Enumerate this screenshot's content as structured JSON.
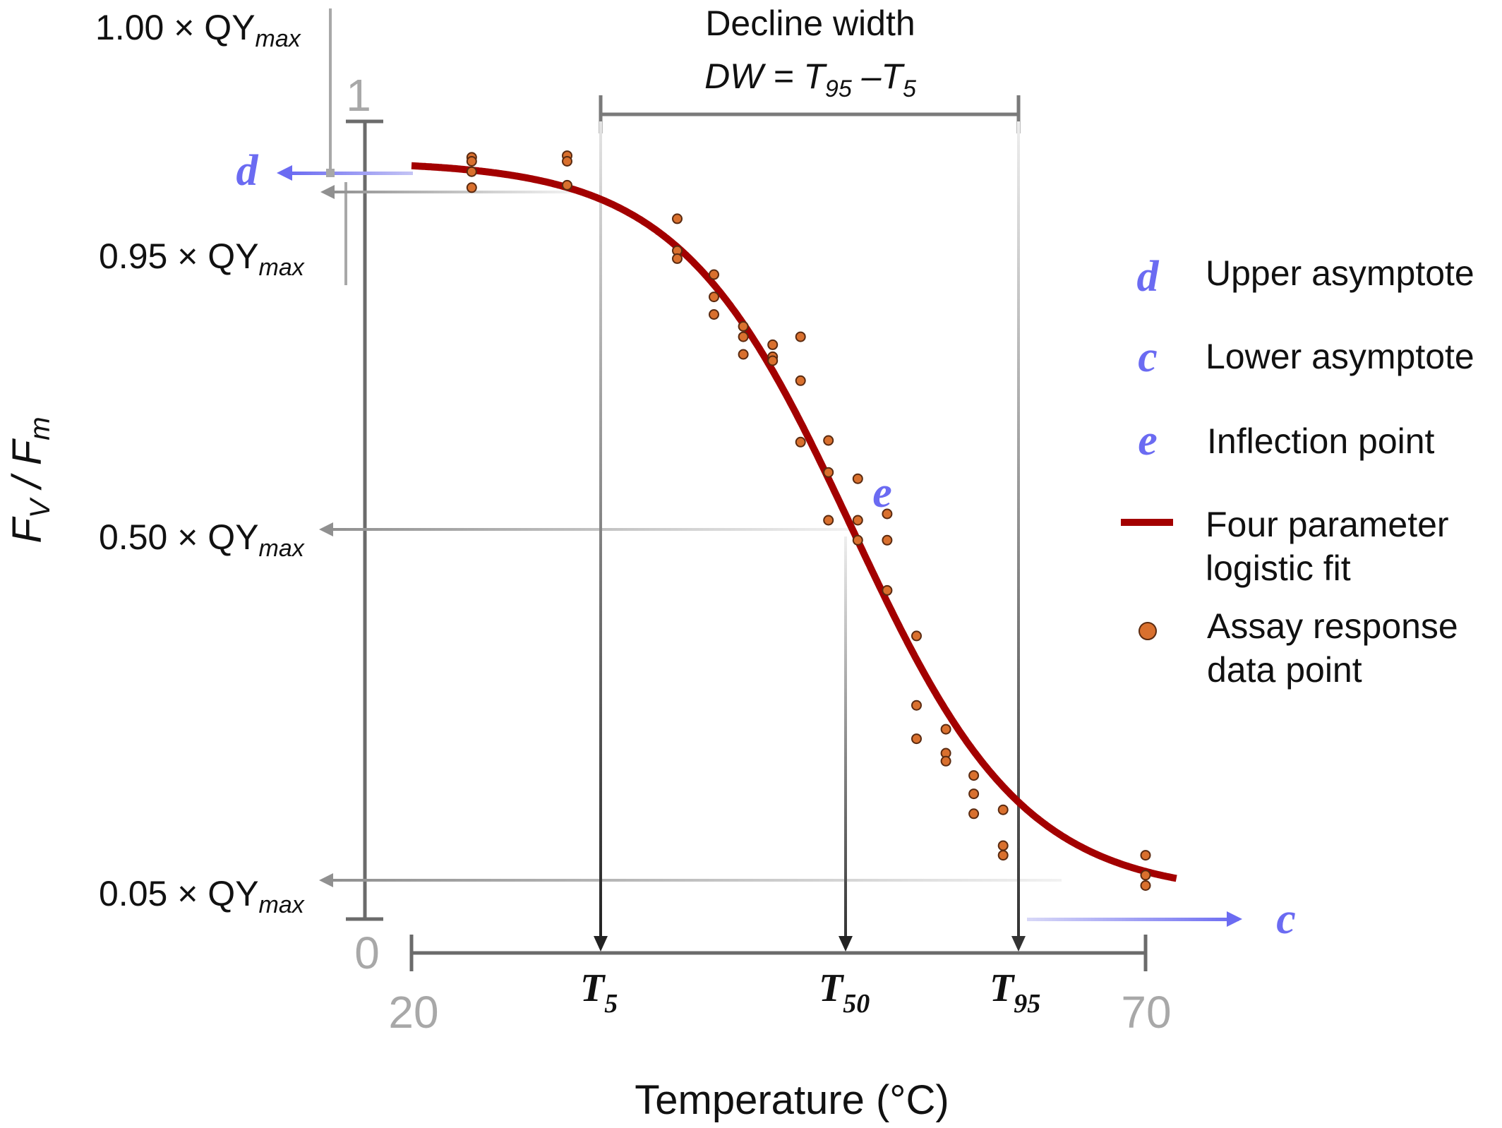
{
  "title": {
    "line1": "Decline width",
    "line2_pre": "DW = T",
    "line2_sub1": "95",
    "line2_mid": " –T",
    "line2_sub2": "5"
  },
  "y_axis": {
    "label_main": "F",
    "label_sub1": "V",
    "label_mid": " / F",
    "label_sub2": "m",
    "tick_top": "1",
    "tick_bottom": "0"
  },
  "x_axis": {
    "label": "Temperature (°C)",
    "tick_left": "20",
    "tick_right": "70"
  },
  "qy_labels": [
    {
      "id": "q100",
      "prefix": "1.00 × QY",
      "sub": "max"
    },
    {
      "id": "q095",
      "prefix": "0.95 × QY",
      "sub": "max"
    },
    {
      "id": "q050",
      "prefix": "0.50 × QY",
      "sub": "max"
    },
    {
      "id": "q005",
      "prefix": "0.05 × QY",
      "sub": "max"
    }
  ],
  "t_labels": [
    {
      "id": "t5",
      "main": "T",
      "sub": "5"
    },
    {
      "id": "t50",
      "main": "T",
      "sub": "50"
    },
    {
      "id": "t95",
      "main": "T",
      "sub": "95"
    }
  ],
  "params": {
    "d": "d",
    "c": "c",
    "e": "e"
  },
  "legend": [
    {
      "symbol": "d",
      "text": [
        "Upper asymptote"
      ]
    },
    {
      "symbol": "c",
      "text": [
        "Lower asymptote"
      ]
    },
    {
      "symbol": "e",
      "text": [
        "Inflection point"
      ]
    },
    {
      "symbol": "line",
      "text": [
        "Four parameter",
        "logistic fit"
      ]
    },
    {
      "symbol": "dot",
      "text": [
        "Assay response",
        "data point"
      ]
    }
  ],
  "colors": {
    "fit": "#a30000",
    "point": "#d9702e",
    "point_edge": "#5a2a10",
    "param": "#6b6bf2",
    "axis": "#6b6b6b",
    "guide": "#a0a0a0"
  },
  "chart_data": {
    "type": "scatter",
    "xlim": [
      20,
      70
    ],
    "ylim": [
      0,
      1
    ],
    "fit": {
      "model": "four-parameter logistic",
      "d": 0.95,
      "c": 0.03,
      "e": 50.0,
      "b": 0.17
    },
    "thresholds": {
      "T5": 32.8,
      "T50": 50.0,
      "T95": 61.4
    },
    "points": [
      [
        24.1,
        0.955
      ],
      [
        24.1,
        0.95
      ],
      [
        24.1,
        0.937
      ],
      [
        24.1,
        0.917
      ],
      [
        30.6,
        0.957
      ],
      [
        30.6,
        0.95
      ],
      [
        30.6,
        0.92
      ],
      [
        38.1,
        0.878
      ],
      [
        38.1,
        0.838
      ],
      [
        38.1,
        0.828
      ],
      [
        40.6,
        0.808
      ],
      [
        40.6,
        0.78
      ],
      [
        40.6,
        0.758
      ],
      [
        42.6,
        0.743
      ],
      [
        42.6,
        0.73
      ],
      [
        42.6,
        0.708
      ],
      [
        44.6,
        0.72
      ],
      [
        44.6,
        0.705
      ],
      [
        44.6,
        0.7
      ],
      [
        46.5,
        0.73
      ],
      [
        46.5,
        0.675
      ],
      [
        46.5,
        0.598
      ],
      [
        48.4,
        0.6
      ],
      [
        48.4,
        0.56
      ],
      [
        48.4,
        0.5
      ],
      [
        50.4,
        0.552
      ],
      [
        50.4,
        0.5
      ],
      [
        50.4,
        0.475
      ],
      [
        52.4,
        0.508
      ],
      [
        52.4,
        0.475
      ],
      [
        52.4,
        0.412
      ],
      [
        54.4,
        0.355
      ],
      [
        54.4,
        0.268
      ],
      [
        54.4,
        0.226
      ],
      [
        56.4,
        0.238
      ],
      [
        56.4,
        0.208
      ],
      [
        56.4,
        0.198
      ],
      [
        58.3,
        0.18
      ],
      [
        58.3,
        0.157
      ],
      [
        58.3,
        0.132
      ],
      [
        60.3,
        0.137
      ],
      [
        60.3,
        0.092
      ],
      [
        60.3,
        0.08
      ],
      [
        70.0,
        0.08
      ],
      [
        70.0,
        0.055
      ],
      [
        70.0,
        0.042
      ]
    ]
  }
}
